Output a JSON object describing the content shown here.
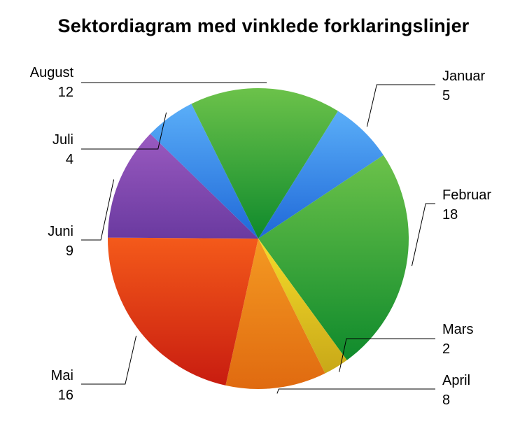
{
  "chart_data": {
    "type": "pie",
    "title": "Sektordiagram med vinklede forklaringslinjer",
    "categories": [
      "Januar",
      "Februar",
      "Mars",
      "April",
      "Mai",
      "Juni",
      "Juli",
      "August"
    ],
    "values": [
      5,
      18,
      2,
      8,
      16,
      9,
      4,
      12
    ],
    "colors": [
      "#3e8ee8",
      "#3faa3a",
      "#d8c020",
      "#ec8a1c",
      "#e4481c",
      "#8a4ab0",
      "#3e8ee8",
      "#3faa3a"
    ],
    "data_labels": true,
    "legend": "none"
  }
}
